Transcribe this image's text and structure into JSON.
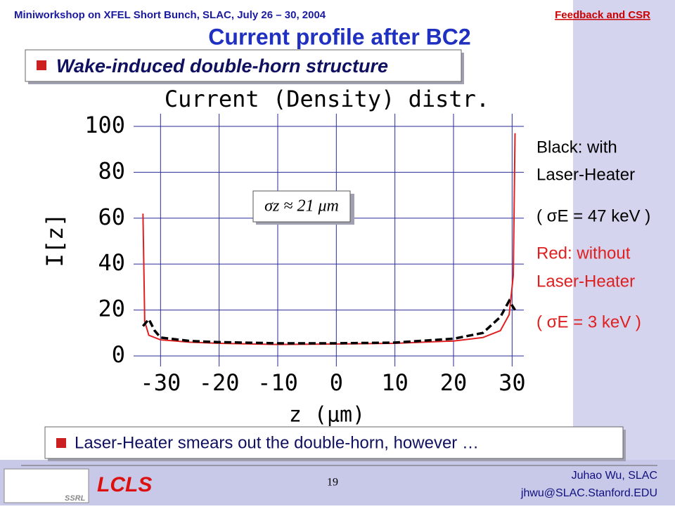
{
  "header": {
    "left": "Miniworkshop on XFEL Short Bunch, SLAC, July 26 – 30, 2004",
    "right": "Feedback and CSR"
  },
  "title": "Current profile after BC2",
  "bullets": [
    "Wake-induced double-horn structure",
    "Laser-Heater smears out the double-horn, however …"
  ],
  "footer": {
    "page": "19",
    "author": "Juhao Wu, SLAC",
    "email": "jhwu@SLAC.Stanford.EDU",
    "logo": "LCLS",
    "logo2": "SSRL"
  },
  "chart_data": {
    "type": "line",
    "title": "Current (Density) distr.",
    "x_label": "z (μm)",
    "y_label": "I[z]",
    "annotation": "σz ≈ 21 μm",
    "notes": [
      "Black: with",
      "Laser-Heater",
      "( σE = 47 keV )",
      "Red: without",
      "Laser-Heater",
      "( σE = 3 keV )"
    ],
    "series": [
      {
        "name": "without Laser-Heater",
        "color": "#e02020",
        "x": [
          -33,
          -32.7,
          -32,
          -30,
          -25,
          -20,
          -10,
          0,
          10,
          20,
          25,
          28,
          29.5,
          30.2,
          30.5
        ],
        "values": [
          62,
          15,
          9,
          7,
          6,
          5.5,
          5,
          5.2,
          5.5,
          6.5,
          8,
          11,
          18,
          35,
          97
        ]
      },
      {
        "name": "with Laser-Heater",
        "color": "#000000",
        "x": [
          -33,
          -32,
          -31,
          -30,
          -25,
          -20,
          -10,
          0,
          10,
          20,
          25,
          28,
          29.5,
          30.5
        ],
        "values": [
          13,
          16,
          11,
          8,
          6.5,
          6,
          5.5,
          5.5,
          5.8,
          7.5,
          10,
          17,
          24,
          20
        ]
      }
    ],
    "xlim": [
      -34.6,
      32
    ],
    "ylim": [
      -4.6,
      105.5
    ],
    "xticks": [
      -30,
      -20,
      -10,
      0,
      10,
      20,
      30
    ],
    "yticks": [
      0,
      20,
      40,
      60,
      80,
      100
    ],
    "grid": true,
    "grid_color": "#2a2a9a"
  }
}
